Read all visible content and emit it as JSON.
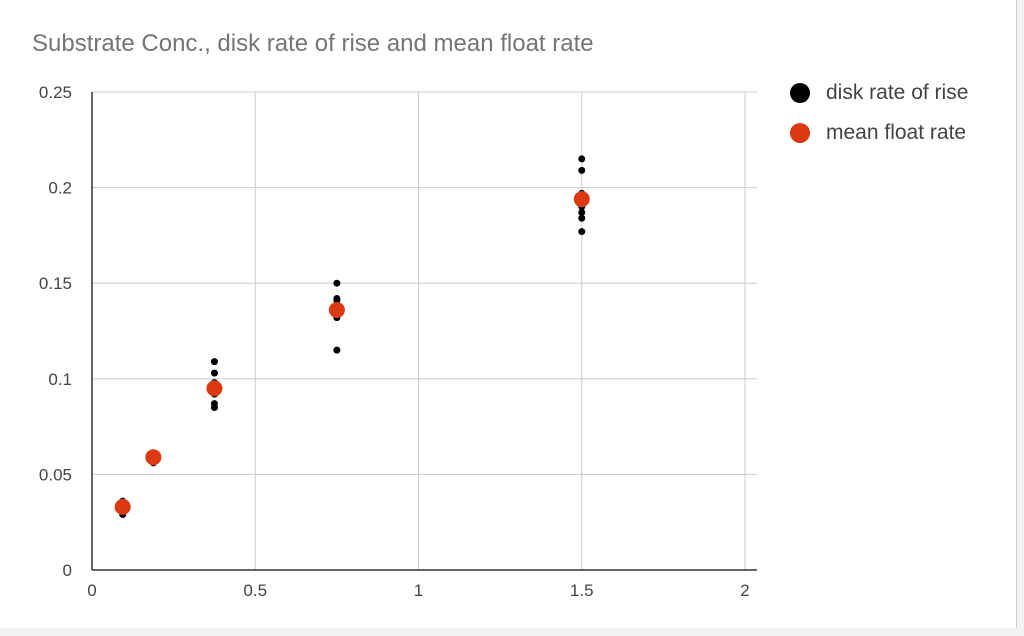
{
  "colors": {
    "disk": "#000000",
    "mean": "#dc3912",
    "grid": "#cccccc",
    "axis": "#333333",
    "tick_text": "#444444"
  },
  "chart_data": {
    "type": "scatter",
    "title": "Substrate Conc., disk rate of rise and mean float rate",
    "xlabel": "",
    "ylabel": "",
    "xlim": [
      0,
      2
    ],
    "ylim": [
      0,
      0.25
    ],
    "x_ticks": [
      0,
      0.5,
      1,
      1.5,
      2
    ],
    "x_tick_labels": [
      "0",
      "0.5",
      "1",
      "1.5",
      "2"
    ],
    "y_ticks": [
      0,
      0.05,
      0.1,
      0.15,
      0.2,
      0.25
    ],
    "y_tick_labels": [
      "0",
      "0.05",
      "0.1",
      "0.15",
      "0.2",
      "0.25"
    ],
    "grid": true,
    "legend_position": "right",
    "series": [
      {
        "name": "disk rate of rise",
        "color": "#000000",
        "marker": "small",
        "points": [
          [
            0.094,
            0.029
          ],
          [
            0.094,
            0.03
          ],
          [
            0.094,
            0.032
          ],
          [
            0.094,
            0.034
          ],
          [
            0.094,
            0.036
          ],
          [
            0.188,
            0.056
          ],
          [
            0.188,
            0.058
          ],
          [
            0.188,
            0.06
          ],
          [
            0.188,
            0.061
          ],
          [
            0.375,
            0.085
          ],
          [
            0.375,
            0.087
          ],
          [
            0.375,
            0.092
          ],
          [
            0.375,
            0.095
          ],
          [
            0.375,
            0.098
          ],
          [
            0.375,
            0.103
          ],
          [
            0.375,
            0.109
          ],
          [
            0.75,
            0.115
          ],
          [
            0.75,
            0.132
          ],
          [
            0.75,
            0.136
          ],
          [
            0.75,
            0.139
          ],
          [
            0.75,
            0.141
          ],
          [
            0.75,
            0.142
          ],
          [
            0.75,
            0.15
          ],
          [
            1.5,
            0.177
          ],
          [
            1.5,
            0.184
          ],
          [
            1.5,
            0.187
          ],
          [
            1.5,
            0.19
          ],
          [
            1.5,
            0.194
          ],
          [
            1.5,
            0.197
          ],
          [
            1.5,
            0.209
          ],
          [
            1.5,
            0.215
          ]
        ]
      },
      {
        "name": "mean float rate",
        "color": "#dc3912",
        "marker": "large",
        "points": [
          [
            0.094,
            0.033
          ],
          [
            0.188,
            0.059
          ],
          [
            0.375,
            0.095
          ],
          [
            0.75,
            0.136
          ],
          [
            1.5,
            0.194
          ]
        ]
      }
    ]
  }
}
